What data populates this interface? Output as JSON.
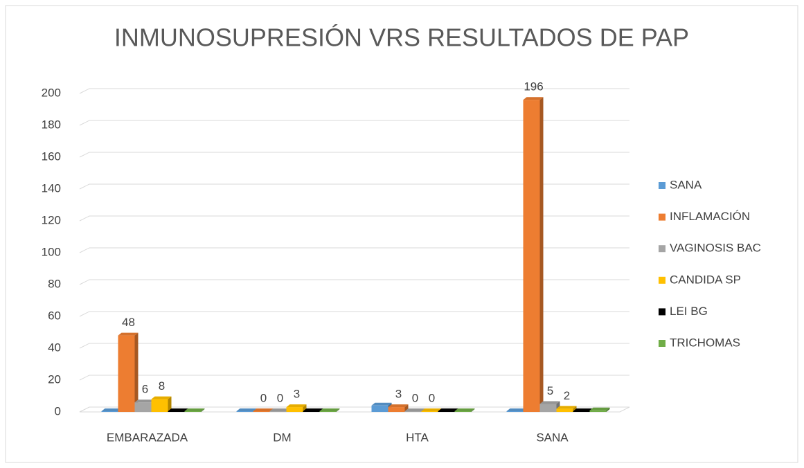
{
  "chart_data": {
    "type": "bar3d",
    "title": "INMUNOSUPRESIÓN VRS RESULTADOS DE PAP",
    "categories": [
      "EMBARAZADA",
      "DM",
      "HTA",
      "SANA"
    ],
    "series": [
      {
        "name": "SANA",
        "color": "#5b9bd5",
        "values": [
          0,
          0,
          4,
          0
        ],
        "data_labels": false
      },
      {
        "name": "INFLAMACIÓN",
        "color": "#ed7d31",
        "values": [
          48,
          0,
          3,
          196
        ],
        "data_labels": true
      },
      {
        "name": "VAGINOSIS BAC",
        "color": "#a5a5a5",
        "values": [
          6,
          0,
          0,
          5
        ],
        "data_labels": true
      },
      {
        "name": "CANDIDA SP",
        "color": "#ffc000",
        "values": [
          8,
          3,
          0,
          2
        ],
        "data_labels": true
      },
      {
        "name": "LEI BG",
        "color": "#000000",
        "values": [
          0,
          0,
          0,
          0
        ],
        "data_labels": false
      },
      {
        "name": "TRICHOMAS",
        "color": "#70ad47",
        "values": [
          0,
          0,
          0,
          1
        ],
        "data_labels": false
      }
    ],
    "ylim": [
      0,
      200
    ],
    "yticks": [
      0,
      20,
      40,
      60,
      80,
      100,
      120,
      140,
      160,
      180,
      200
    ],
    "grid": true,
    "legend": "right"
  }
}
